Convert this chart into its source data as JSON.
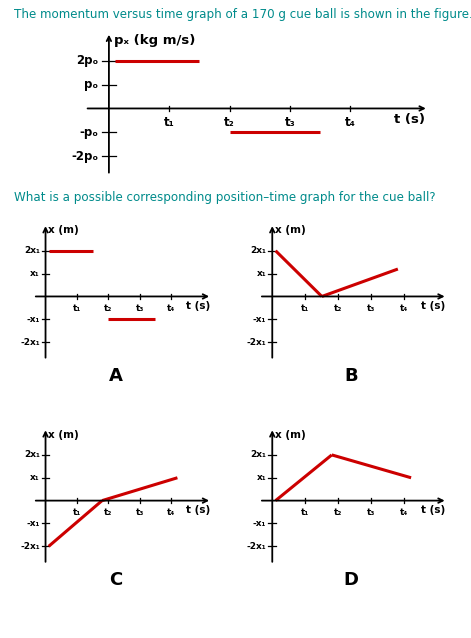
{
  "title_line": "The momentum versus time graph of a 170 g cue ball is shown in the figure.",
  "title_color": "#008B8B",
  "question_line": "What is a possible corresponding position–time graph for the cue ball?",
  "question_color": "#008B8B",
  "red_color": "#cc0000",
  "bg_color": "#ffffff",
  "main_graph": {
    "ylabel": "pₓ (kg m/s)",
    "xlabel": "t (s)",
    "ytick_labels": [
      "2pₒ",
      "pₒ",
      "-pₒ",
      "-2pₒ"
    ],
    "ytick_vals": [
      2,
      1,
      -1,
      -2
    ],
    "xtick_labels": [
      "t₁",
      "t₂",
      "t₃",
      "t₄"
    ],
    "xtick_vals": [
      1,
      2,
      3,
      4
    ],
    "line1_x": [
      0.1,
      1.5
    ],
    "line1_y": [
      2,
      2
    ],
    "line2_x": [
      2.0,
      3.5
    ],
    "line2_y": [
      -1,
      -1
    ],
    "xlim": [
      -0.4,
      5.3
    ],
    "ylim": [
      -2.8,
      3.2
    ]
  },
  "subgraph_A": {
    "label": "A",
    "ylabel": "x (m)",
    "xlabel": "t (s)",
    "ytick_labels": [
      "2x₁",
      "x₁",
      "-x₁",
      "-2x₁"
    ],
    "ytick_vals": [
      2,
      1,
      -1,
      -2
    ],
    "xtick_labels": [
      "t₁",
      "t₂",
      "t₃",
      "t₄"
    ],
    "xtick_vals": [
      1,
      2,
      3,
      4
    ],
    "line1_x": [
      0.1,
      1.5
    ],
    "line1_y": [
      2,
      2
    ],
    "line2_x": [
      2.0,
      3.5
    ],
    "line2_y": [
      -1,
      -1
    ],
    "xlim": [
      -0.4,
      5.3
    ],
    "ylim": [
      -2.8,
      3.2
    ]
  },
  "subgraph_B": {
    "label": "B",
    "ylabel": "x (m)",
    "xlabel": "t (s)",
    "ytick_labels": [
      "2x₁",
      "x₁",
      "-x₁",
      "-2x₁"
    ],
    "ytick_vals": [
      2,
      1,
      -1,
      -2
    ],
    "xtick_labels": [
      "t₁",
      "t₂",
      "t₃",
      "t₄"
    ],
    "xtick_vals": [
      1,
      2,
      3,
      4
    ],
    "line1_x": [
      0.1,
      1.5
    ],
    "line1_y": [
      2,
      0
    ],
    "line2_x": [
      1.5,
      3.8
    ],
    "line2_y": [
      0,
      1.2
    ],
    "xlim": [
      -0.4,
      5.3
    ],
    "ylim": [
      -2.8,
      3.2
    ]
  },
  "subgraph_C": {
    "label": "C",
    "ylabel": "x (m)",
    "xlabel": "t (s)",
    "ytick_labels": [
      "2x₁",
      "x₁",
      "-x₁",
      "-2x₁"
    ],
    "ytick_vals": [
      2,
      1,
      -1,
      -2
    ],
    "xtick_labels": [
      "t₁",
      "t₂",
      "t₃",
      "t₄"
    ],
    "xtick_vals": [
      1,
      2,
      3,
      4
    ],
    "line1_x": [
      0.1,
      1.8
    ],
    "line1_y": [
      -2,
      0
    ],
    "line2_x": [
      1.8,
      4.2
    ],
    "line2_y": [
      0,
      1.0
    ],
    "xlim": [
      -0.4,
      5.3
    ],
    "ylim": [
      -2.8,
      3.2
    ]
  },
  "subgraph_D": {
    "label": "D",
    "ylabel": "x (m)",
    "xlabel": "t (s)",
    "ytick_labels": [
      "2x₁",
      "x₁",
      "-x₁",
      "-2x₁"
    ],
    "ytick_vals": [
      2,
      1,
      -1,
      -2
    ],
    "xtick_labels": [
      "t₁",
      "t₂",
      "t₃",
      "t₄"
    ],
    "xtick_vals": [
      1,
      2,
      3,
      4
    ],
    "line1_x": [
      0.1,
      1.8
    ],
    "line1_y": [
      0,
      2
    ],
    "line2_x": [
      1.8,
      4.2
    ],
    "line2_y": [
      2,
      1.0
    ],
    "xlim": [
      -0.4,
      5.3
    ],
    "ylim": [
      -2.8,
      3.2
    ]
  }
}
